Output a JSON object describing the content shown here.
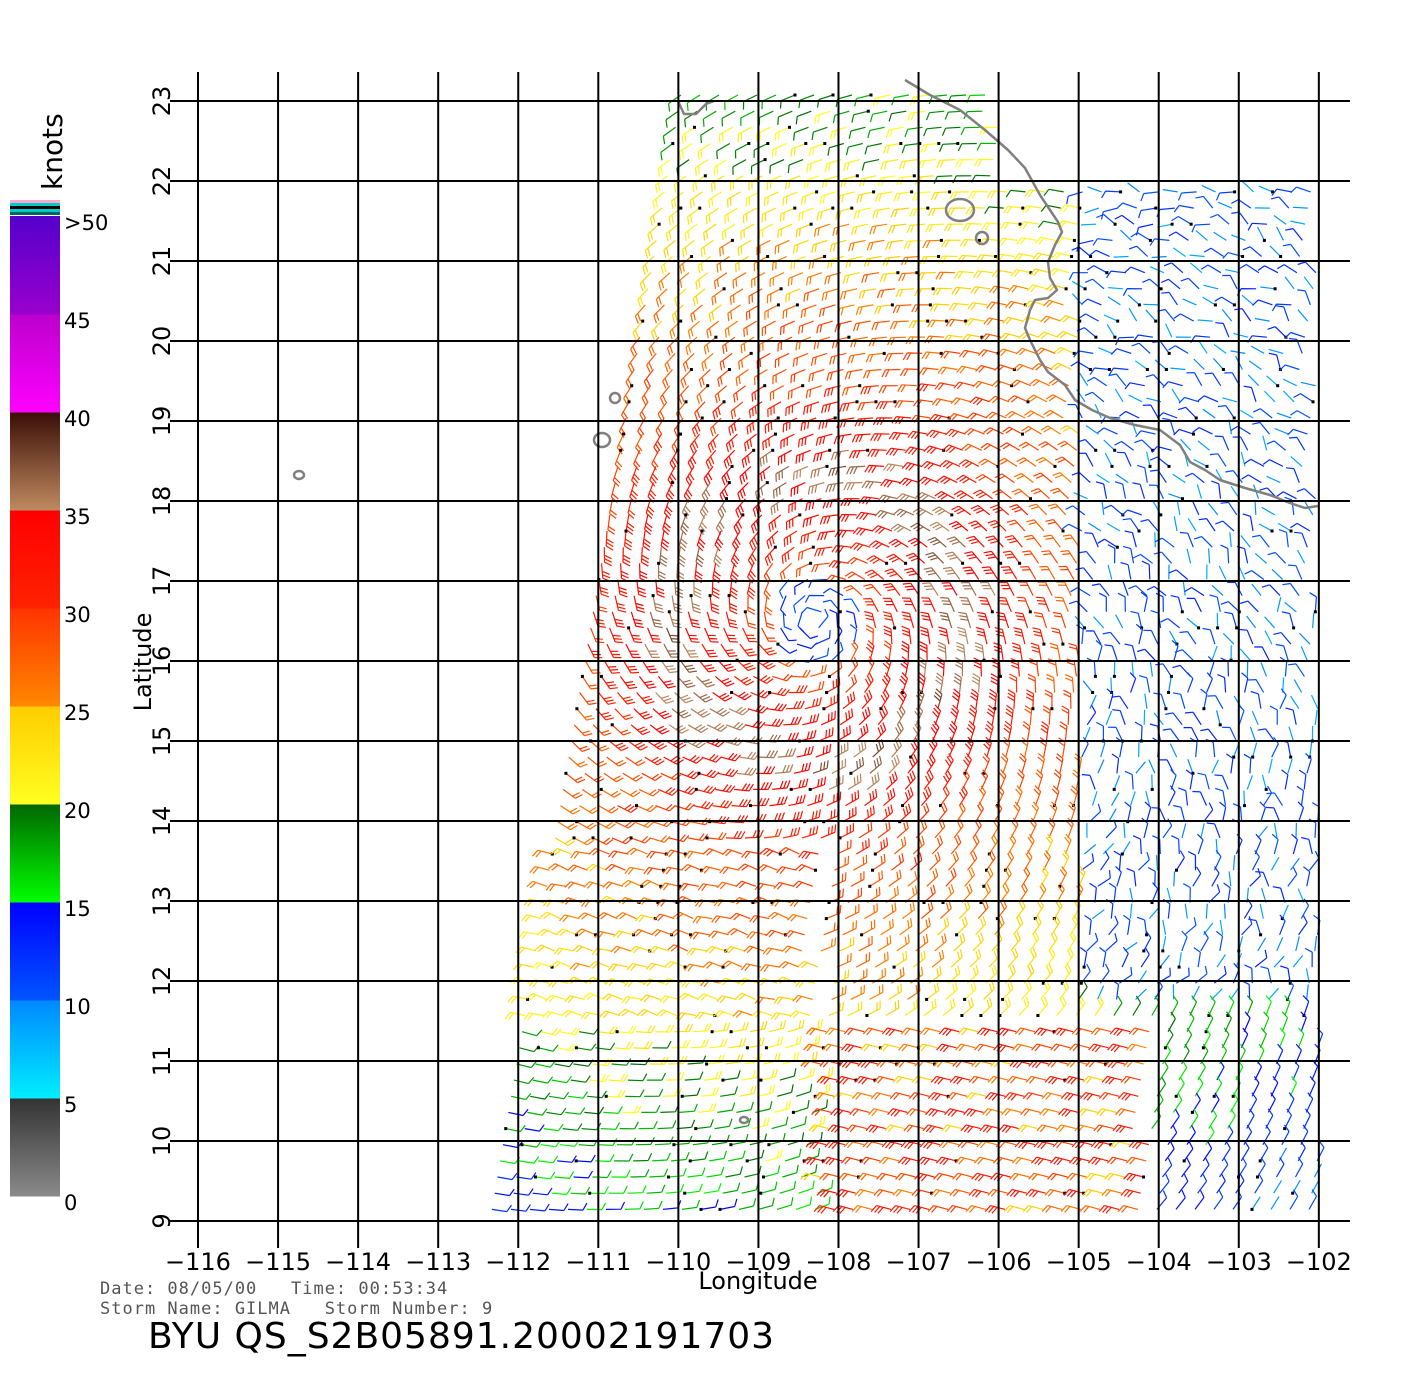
{
  "map": {
    "xlabel": "Longitude",
    "ylabel": "Latitude",
    "lon_ticks": [
      -116,
      -115,
      -114,
      -113,
      -112,
      -111,
      -110,
      -109,
      -108,
      -107,
      -106,
      -105,
      -104,
      -103,
      -102
    ],
    "lat_ticks": [
      9,
      10,
      11,
      12,
      13,
      14,
      15,
      16,
      17,
      18,
      19,
      20,
      21,
      22,
      23
    ],
    "lon_range": [
      -116,
      -101.6
    ],
    "lat_range": [
      9,
      23
    ],
    "storm_center": {
      "lon": -108.3,
      "lat": 16.5
    },
    "coastline_color": "#808080"
  },
  "legend": {
    "unit": "knots",
    "labels": [
      ">50",
      "45",
      "40",
      "35",
      "30",
      "25",
      "20",
      "15",
      "10",
      "5",
      "0"
    ],
    "bins": [
      {
        "from": 0,
        "to": 5,
        "color_top": "#333333",
        "color_bottom": "#8a8a8a"
      },
      {
        "from": 5,
        "to": 10,
        "color_top": "#0088ff",
        "color_bottom": "#00eeff"
      },
      {
        "from": 10,
        "to": 15,
        "color_top": "#0000ff",
        "color_bottom": "#0055ff"
      },
      {
        "from": 15,
        "to": 20,
        "color_top": "#006600",
        "color_bottom": "#00ff00"
      },
      {
        "from": 20,
        "to": 25,
        "color_top": "#ffcc00",
        "color_bottom": "#ffff22"
      },
      {
        "from": 25,
        "to": 30,
        "color_top": "#ff3300",
        "color_bottom": "#ff8800"
      },
      {
        "from": 30,
        "to": 35,
        "color_top": "#ff0000",
        "color_bottom": "#ff2200"
      },
      {
        "from": 35,
        "to": 40,
        "color_top": "#3a0d06",
        "color_bottom": "#c08a60"
      },
      {
        "from": 40,
        "to": 45,
        "color_top": "#bb00cc",
        "color_bottom": "#ff00ff"
      },
      {
        "from": 45,
        "to": 50,
        "color_top": "#5500cc",
        "color_bottom": "#9900cc"
      }
    ],
    "top_strip_colors": [
      "#ffaacc",
      "#00cccc",
      "#000000",
      "#00cccc",
      "#006666"
    ]
  },
  "info": {
    "date_line": "Date: 08/05/00   Time: 00:53:34",
    "storm_line": "Storm Name: GILMA   Storm Number: 9",
    "product_id": "BYU QS_S2B05891.20002191703"
  }
}
